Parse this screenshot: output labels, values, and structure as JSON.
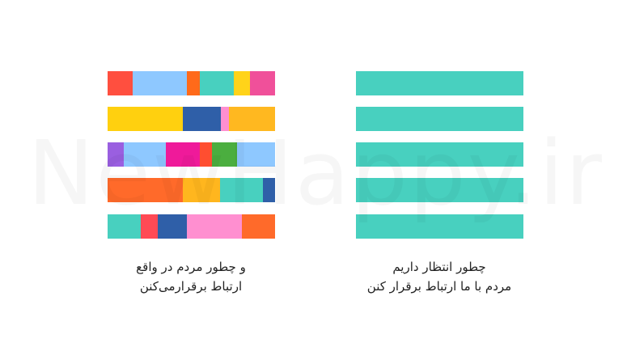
{
  "watermark": "NewHappy.ir",
  "left_caption": {
    "lines": [
      "و چطور مردم در واقع",
      "ارتباط برقرارمی‌کنن"
    ]
  },
  "right_caption": {
    "lines": [
      "چطور انتظار داریم",
      "مردم با ما ارتباط برقرار کنن"
    ]
  }
}
